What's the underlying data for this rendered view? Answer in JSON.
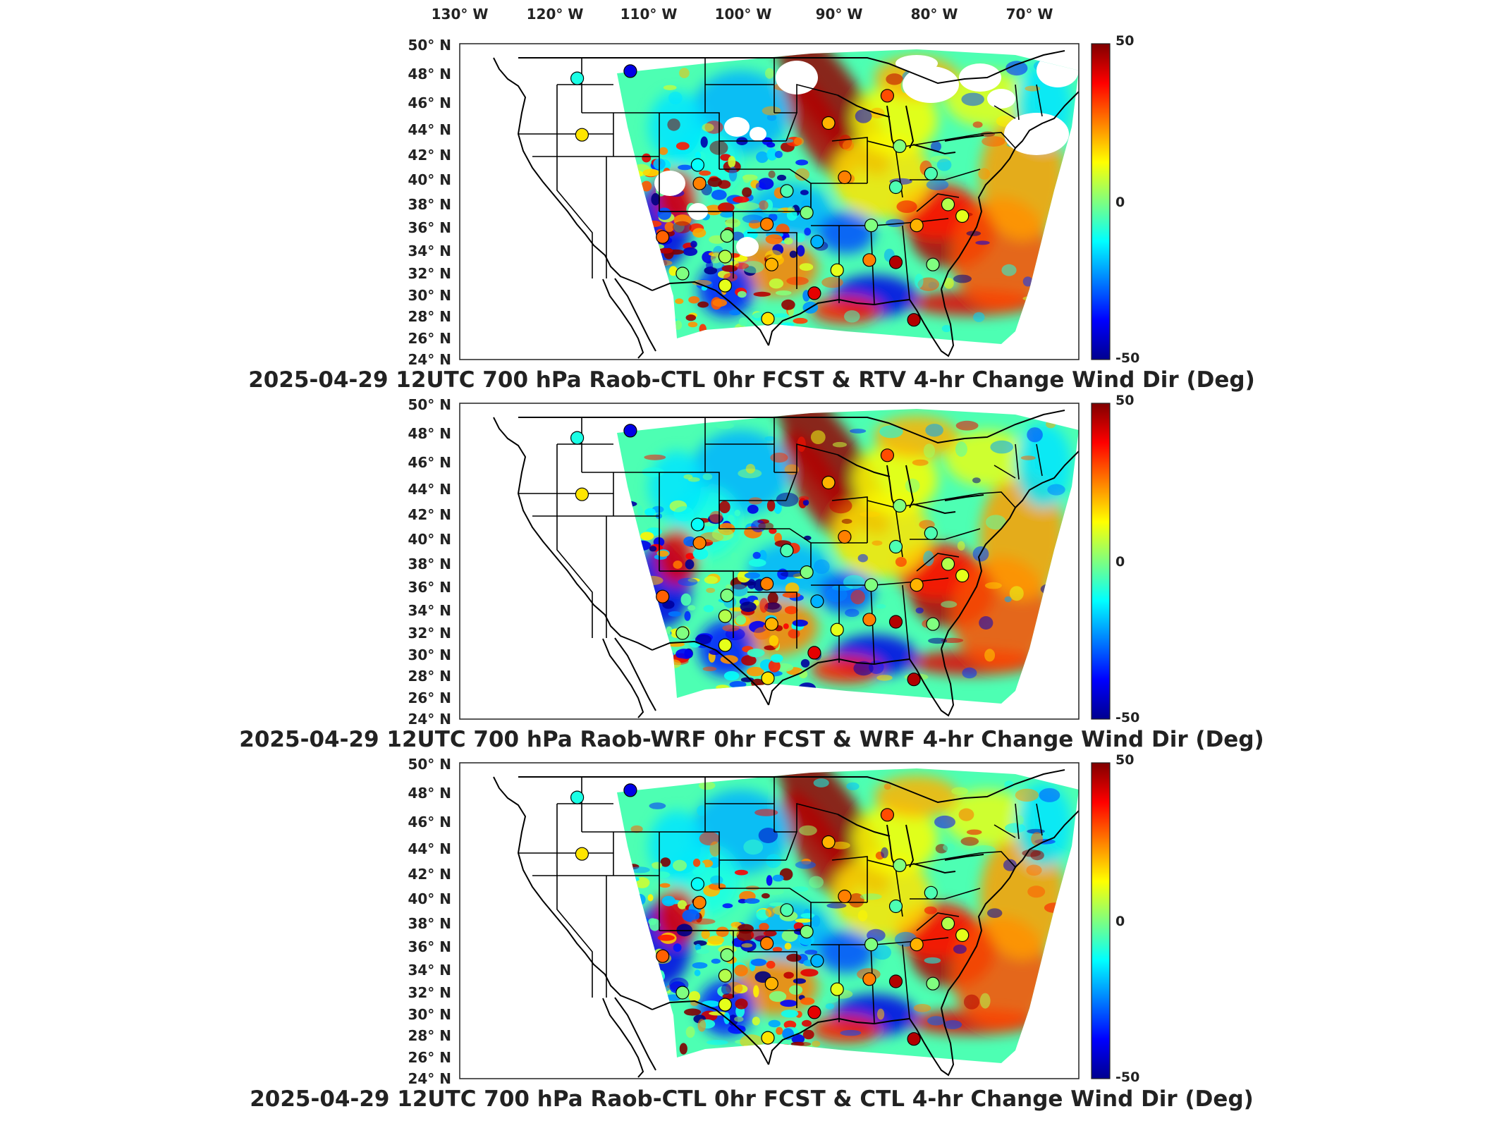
{
  "figure": {
    "top_longitude_labels": [
      "130° W",
      "120° W",
      "110° W",
      "100° W",
      "90° W",
      "80° W",
      "70° W"
    ],
    "latitude_labels": [
      "50° N",
      "48° N",
      "46° N",
      "44° N",
      "42° N",
      "40° N",
      "38° N",
      "36° N",
      "34° N",
      "32° N",
      "30° N",
      "28° N",
      "26° N",
      "24° N"
    ],
    "colorbar": {
      "max_label": "50",
      "mid_label": "0",
      "min_label": "-50",
      "colormap": "jet"
    },
    "panels": [
      {
        "title": "2025-04-29 12UTC 700 hPa Raob-CTL 0hr FCST & RTV 4-hr Change Wind Dir (Deg)",
        "has_missing_data_gaps": true
      },
      {
        "title": "2025-04-29 12UTC 700 hPa Raob-WRF 0hr FCST & WRF 4-hr Change Wind Dir (Deg)",
        "has_missing_data_gaps": false
      },
      {
        "title": "2025-04-29 12UTC 700 hPa Raob-CTL 0hr FCST & CTL 4-hr Change Wind Dir (Deg)",
        "has_missing_data_gaps": false
      }
    ]
  },
  "chart_data": {
    "type": "heatmap",
    "quantity": "wind direction difference (Deg)",
    "value_range": [
      -50,
      50
    ],
    "lon_range": [
      -130,
      -65
    ],
    "lat_range": [
      24,
      50
    ],
    "raob_stations": [
      {
        "lon": -117.5,
        "lat": 47.7,
        "value": -10
      },
      {
        "lon": -111.9,
        "lat": 48.2,
        "value": -40
      },
      {
        "lon": -117.0,
        "lat": 43.6,
        "value": 15
      },
      {
        "lon": -104.8,
        "lat": 41.2,
        "value": -12
      },
      {
        "lon": -104.6,
        "lat": 39.7,
        "value": 25
      },
      {
        "lon": -108.5,
        "lat": 35.2,
        "value": 28
      },
      {
        "lon": -101.7,
        "lat": 35.3,
        "value": 0
      },
      {
        "lon": -97.5,
        "lat": 36.3,
        "value": 25
      },
      {
        "lon": -97.0,
        "lat": 32.8,
        "value": 20
      },
      {
        "lon": -101.9,
        "lat": 33.5,
        "value": 5
      },
      {
        "lon": -106.4,
        "lat": 32.0,
        "value": 0
      },
      {
        "lon": -101.9,
        "lat": 30.9,
        "value": 10
      },
      {
        "lon": -97.4,
        "lat": 27.8,
        "value": 15
      },
      {
        "lon": -95.4,
        "lat": 39.1,
        "value": -5
      },
      {
        "lon": -93.3,
        "lat": 37.3,
        "value": 0
      },
      {
        "lon": -92.2,
        "lat": 34.8,
        "value": -20
      },
      {
        "lon": -91.0,
        "lat": 44.5,
        "value": 20
      },
      {
        "lon": -89.3,
        "lat": 40.2,
        "value": 25
      },
      {
        "lon": -84.8,
        "lat": 46.5,
        "value": 30
      },
      {
        "lon": -83.5,
        "lat": 42.7,
        "value": 0
      },
      {
        "lon": -83.9,
        "lat": 39.4,
        "value": -5
      },
      {
        "lon": -86.5,
        "lat": 36.2,
        "value": 0
      },
      {
        "lon": -83.9,
        "lat": 33.0,
        "value": 45
      },
      {
        "lon": -86.7,
        "lat": 33.2,
        "value": 25
      },
      {
        "lon": -90.1,
        "lat": 32.3,
        "value": 10
      },
      {
        "lon": -92.5,
        "lat": 30.2,
        "value": 40
      },
      {
        "lon": -81.7,
        "lat": 36.2,
        "value": 20
      },
      {
        "lon": -82.0,
        "lat": 27.7,
        "value": 45
      },
      {
        "lon": -80.0,
        "lat": 32.8,
        "value": 0
      },
      {
        "lon": -78.4,
        "lat": 38.0,
        "value": 5
      },
      {
        "lon": -80.2,
        "lat": 40.5,
        "value": -5
      },
      {
        "lon": -76.9,
        "lat": 37.0,
        "value": 10
      }
    ]
  }
}
